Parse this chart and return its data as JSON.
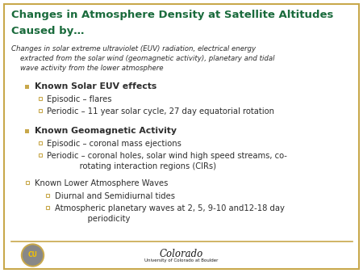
{
  "title_line1": "Changes in Atmosphere Density at Satellite Altitudes",
  "title_line2": "Caused by…",
  "subtitle_lines": [
    "Changes in solar extreme ultraviolet (EUV) radiation, electrical energy",
    "    extracted from the solar wind (geomagnetic activity), planetary and tidal",
    "    wave activity from the lower atmosphere"
  ],
  "bullet1_text": "Known Solar EUV effects",
  "bullet1_sub": [
    "Episodic – flares",
    "Periodic – 11 year solar cycle, 27 day equatorial rotation"
  ],
  "bullet2_text": "Known Geomagnetic Activity",
  "bullet2_sub": [
    "Episodic – coronal mass ejections",
    "Periodic – coronal holes, solar wind high speed streams, co-\n             rotating interaction regions (CIRs)"
  ],
  "bullet3_text": "Known Lower Atmosphere Waves",
  "bullet3_sub": [
    "Diurnal and Semidiurnal tides",
    "Atmospheric planetary waves at 2, 5, 9-10 and12-18 day\n             periodicity"
  ],
  "title_color": "#1a6b3c",
  "subtitle_color": "#2d2d2d",
  "bullet_color": "#2d2d2d",
  "bg_color": "#ffffff",
  "border_color": "#c8a84b",
  "square_bullet_color": "#c8a84b",
  "small_bullet_color": "#c8a84b",
  "colorado_color": "#1a1a1a"
}
